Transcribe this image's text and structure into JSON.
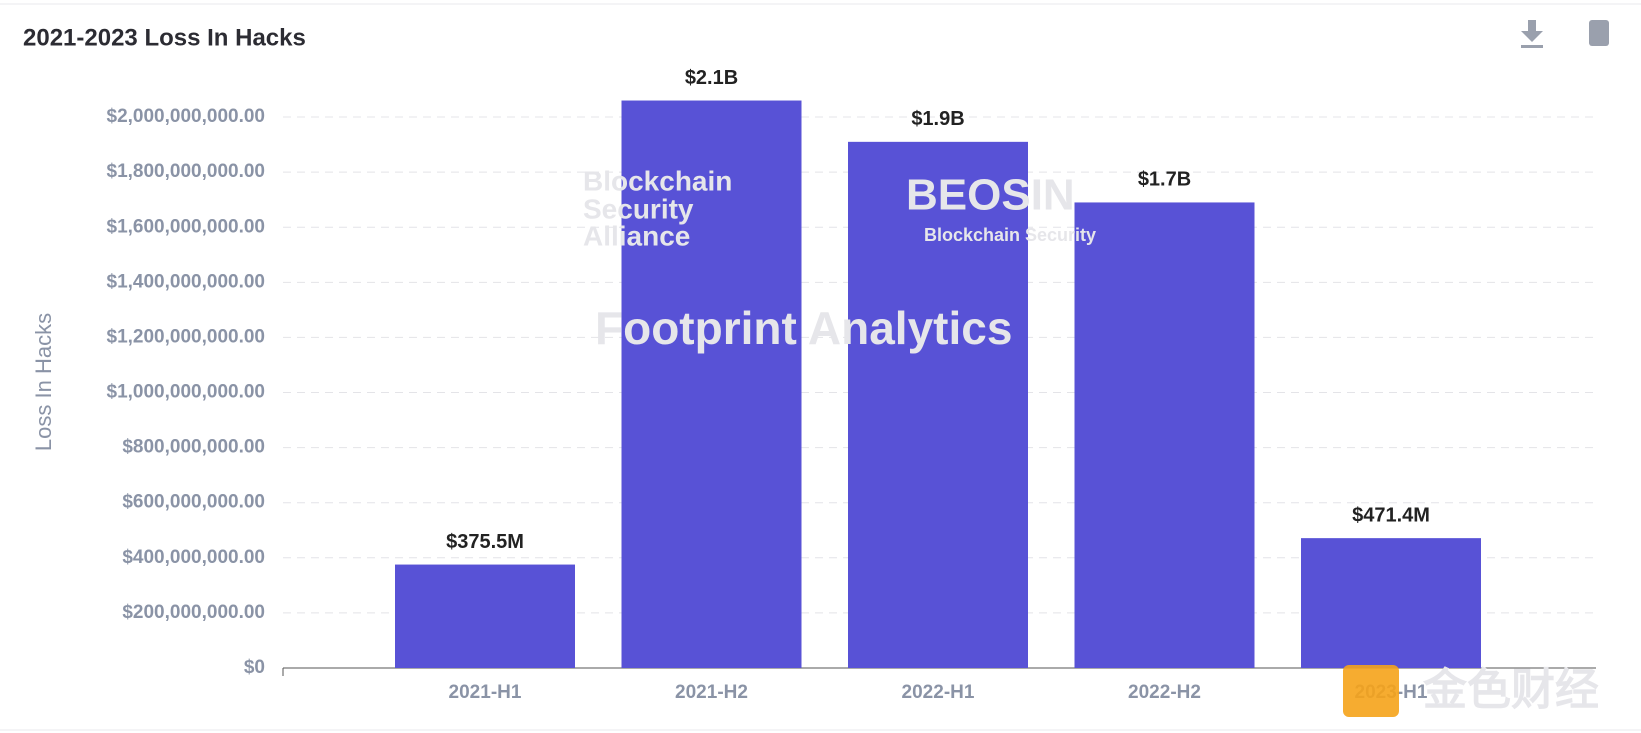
{
  "chart_data": {
    "type": "bar",
    "title": "2021-2023 Loss In Hacks",
    "y_label": "Loss In Hacks",
    "categories": [
      "2021-H1",
      "2021-H2",
      "2022-H1",
      "2022-H2",
      "2023-H1"
    ],
    "values": [
      375500000,
      2060000000,
      1910000000,
      1690000000,
      471400000
    ],
    "value_labels": [
      "$375.5M",
      "$2.1B",
      "$1.9B",
      "$1.7B",
      "$471.4M"
    ],
    "color": "#5852d6",
    "ylim": [
      0,
      2100000000
    ],
    "yticks": [
      {
        "value": 0,
        "label": "$0"
      },
      {
        "value": 200000000,
        "label": "$200,000,000.00"
      },
      {
        "value": 400000000,
        "label": "$400,000,000.00"
      },
      {
        "value": 600000000,
        "label": "$600,000,000.00"
      },
      {
        "value": 800000000,
        "label": "$800,000,000.00"
      },
      {
        "value": 1000000000,
        "label": "$1,000,000,000.00"
      },
      {
        "value": 1200000000,
        "label": "$1,200,000,000.00"
      },
      {
        "value": 1400000000,
        "label": "$1,400,000,000.00"
      },
      {
        "value": 1600000000,
        "label": "$1,600,000,000.00"
      },
      {
        "value": 1800000000,
        "label": "$1,800,000,000.00"
      },
      {
        "value": 2000000000,
        "label": "$2,000,000,000.00"
      }
    ],
    "grid": true,
    "watermarks": [
      "Blockchain",
      "Security",
      "Alliance",
      "BEOSIN",
      "Blockchain Security",
      "Footprint Analytics",
      "金色财经"
    ]
  }
}
